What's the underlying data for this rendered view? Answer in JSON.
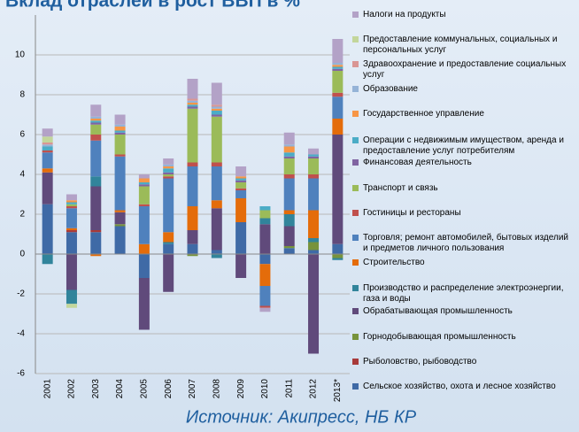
{
  "chart_data": {
    "type": "stacked_bar",
    "title": "Вклад отраслей в рост ВВП в %",
    "source": "Источник: Акипресс, НБ КР",
    "categories": [
      "2001",
      "2002",
      "2003",
      "2004",
      "2005",
      "2006",
      "2007",
      "2008",
      "2009",
      "2010",
      "2011",
      "2012",
      "2013*"
    ],
    "ylim": [
      -6,
      12
    ],
    "yticks": [
      -6,
      -4,
      -2,
      0,
      2,
      4,
      6,
      8,
      10
    ],
    "grid": true,
    "series": [
      {
        "name": "Сельское хозяйство, охота и лесное хозяйство",
        "color": "#3f6aa6",
        "values": [
          2.5,
          1.1,
          1.1,
          1.4,
          -1.2,
          0.5,
          0.5,
          0.2,
          1.6,
          -0.5,
          0.3,
          0.2,
          0.5
        ]
      },
      {
        "name": "Рыболовство, рыбоводство",
        "color": "#a83a3a",
        "values": [
          0,
          0.1,
          0.1,
          0,
          0,
          0,
          0,
          0,
          0,
          0,
          0,
          0,
          0
        ]
      },
      {
        "name": "Горнодобывающая промышленность",
        "color": "#77933c",
        "values": [
          0,
          0,
          0,
          0.1,
          0,
          0,
          -0.1,
          0,
          0,
          0,
          0.1,
          0.4,
          -0.2
        ]
      },
      {
        "name": "Обрабатывающая промышленность",
        "color": "#604a7b",
        "values": [
          1.6,
          -1.8,
          2.2,
          0.6,
          -2.6,
          -1.9,
          0.7,
          2.1,
          -1.2,
          1.5,
          1.0,
          -5.0,
          5.5
        ]
      },
      {
        "name": "Производство и распределение электроэнергии, газа и воды",
        "color": "#31849b",
        "values": [
          -0.5,
          -0.7,
          0.5,
          0,
          0,
          0.1,
          0,
          -0.2,
          0,
          0.3,
          0.6,
          0.2,
          -0.1
        ]
      },
      {
        "name": "Строительство",
        "color": "#e46c0a",
        "values": [
          0.2,
          0.1,
          -0.1,
          0.1,
          0.5,
          0.5,
          1.2,
          0.4,
          1.2,
          -1.1,
          0.2,
          1.4,
          0.8
        ]
      },
      {
        "name": "Торговля; ремонт автомобилей, бытовых изделий и предметов личного пользования",
        "color": "#4f81bd",
        "values": [
          0.8,
          1.0,
          1.8,
          2.7,
          1.9,
          2.7,
          2.0,
          1.7,
          0.4,
          -1.0,
          1.6,
          1.6,
          1.1
        ]
      },
      {
        "name": "Гостиницы и рестораны",
        "color": "#c0504d",
        "values": [
          0.1,
          0.1,
          0.3,
          0.1,
          0.1,
          0.1,
          0.2,
          0.2,
          0.1,
          -0.1,
          0.2,
          0.2,
          0.2
        ]
      },
      {
        "name": "Транспорт и связь",
        "color": "#9bbb59",
        "values": [
          0,
          0.1,
          0.5,
          1.0,
          0.9,
          0.1,
          2.7,
          2.3,
          0.3,
          0.4,
          0.8,
          0.8,
          1.1
        ]
      },
      {
        "name": "Финансовая деятельность",
        "color": "#8064a2",
        "values": [
          0,
          0,
          0.1,
          0.1,
          0.1,
          0.1,
          0.1,
          0.1,
          0.1,
          0,
          0.1,
          0.1,
          0.1
        ]
      },
      {
        "name": "Операции с недвижимым имуществом, аренда и предоставление услуг потребителям",
        "color": "#4bacc6",
        "values": [
          0.2,
          0.1,
          0.1,
          0.1,
          0.1,
          0.2,
          0.1,
          0.2,
          0.1,
          0.2,
          0.2,
          0.1,
          0.1
        ]
      },
      {
        "name": "Государственное управление",
        "color": "#f79646",
        "values": [
          0,
          0.1,
          0.1,
          0.2,
          0.2,
          0.1,
          0.1,
          0.1,
          0.1,
          0,
          0.3,
          0,
          0.1
        ]
      },
      {
        "name": "Образование",
        "color": "#95b3d7",
        "values": [
          0.1,
          0,
          0.1,
          0.1,
          0,
          0.1,
          0.1,
          0.1,
          0,
          0,
          0.1,
          0,
          0.1
        ]
      },
      {
        "name": "Здравоохранение и предоставление социальных услуг",
        "color": "#d99694",
        "values": [
          0.1,
          0,
          0,
          0,
          0,
          0,
          0.1,
          0.1,
          0,
          0,
          0,
          0,
          0
        ]
      },
      {
        "name": "Предоставление коммунальных, социальных и персональных услуг",
        "color": "#c3d69b",
        "values": [
          0.3,
          -0.2,
          0,
          0,
          0,
          0,
          0,
          0,
          0,
          0,
          0,
          0,
          0
        ]
      },
      {
        "name": "Налоги на продукты",
        "color": "#b3a2c7",
        "values": [
          0.4,
          0.3,
          0.6,
          0.5,
          0.2,
          0.3,
          1.0,
          1.1,
          0.5,
          -0.2,
          0.6,
          0.3,
          1.2
        ]
      }
    ]
  }
}
